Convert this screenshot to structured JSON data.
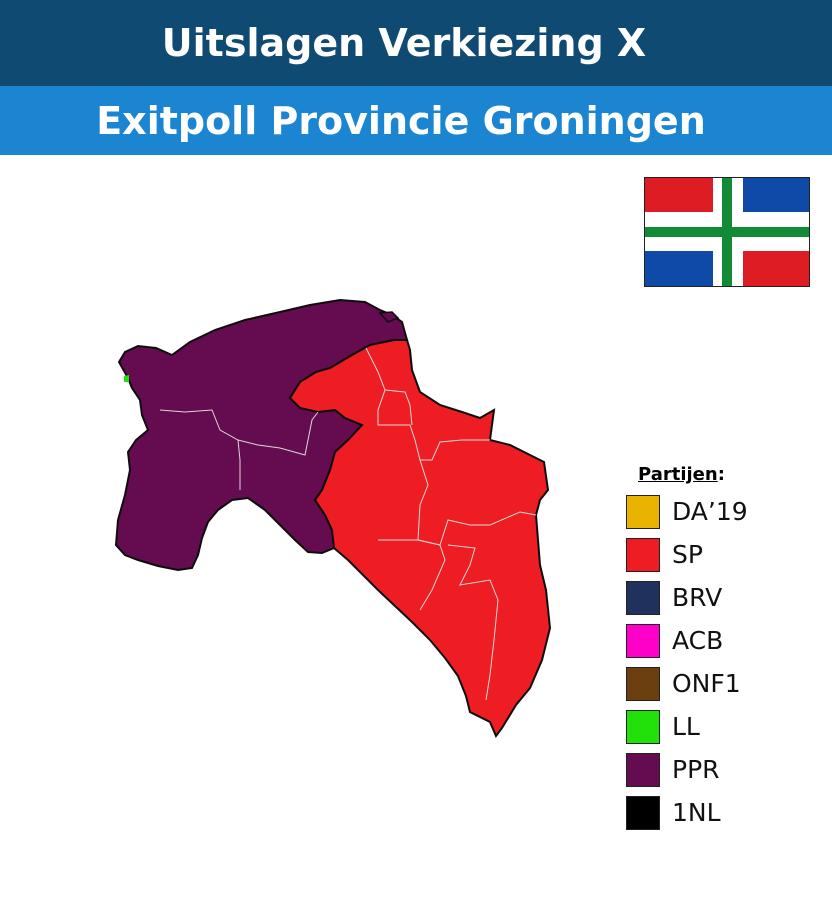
{
  "header": {
    "title": "Uitslagen Verkiezing X",
    "subtitle": "Exitpoll Provincie Groningen"
  },
  "colors": {
    "title_bg": "#0f4a73",
    "subtitle_bg": "#1b85d2",
    "flag_red": "#dd1c24",
    "flag_blue": "#0f4aa8",
    "flag_green": "#138a36"
  },
  "legend": {
    "title": "Partijen",
    "title_suffix": ":",
    "items": [
      {
        "label": "DA’19",
        "color": "#e9b300"
      },
      {
        "label": "SP",
        "color": "#ee1d24"
      },
      {
        "label": "BRV",
        "color": "#20315e"
      },
      {
        "label": "ACB",
        "color": "#ff00c8"
      },
      {
        "label": "ONF1",
        "color": "#6b3f10"
      },
      {
        "label": "LL",
        "color": "#22e10a"
      },
      {
        "label": "PPR",
        "color": "#650b4f"
      },
      {
        "label": "1NL",
        "color": "#000000"
      }
    ]
  },
  "map": {
    "west_region_party": "PPR",
    "east_region_party": "SP",
    "west_color": "#650b4f",
    "east_color": "#ee1d24"
  }
}
